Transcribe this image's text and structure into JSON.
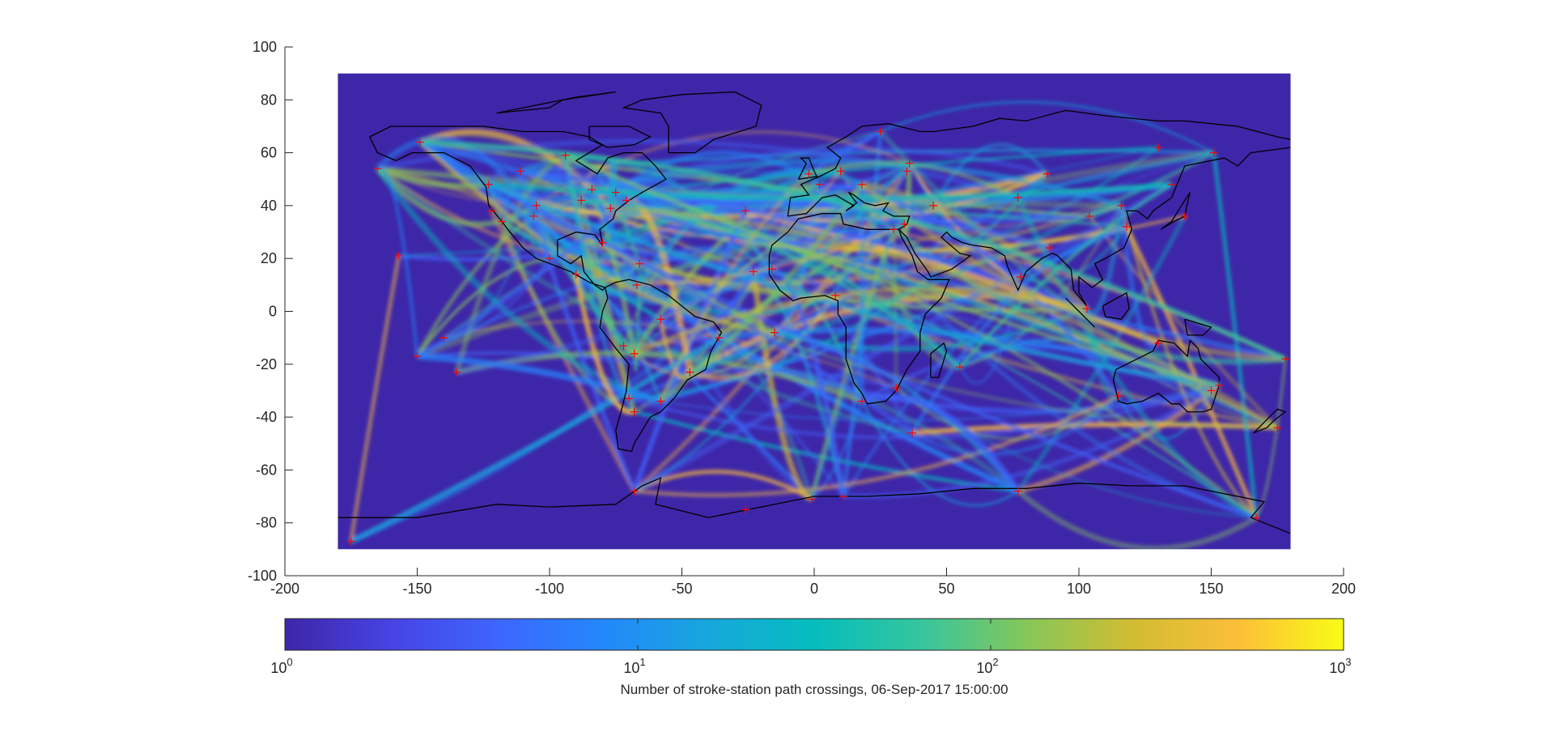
{
  "chart_data": {
    "type": "heatmap",
    "title": "",
    "xlabel": "",
    "ylabel": "",
    "xlim": [
      -200,
      200
    ],
    "ylim": [
      -100,
      100
    ],
    "x_ticks": [
      -200,
      -150,
      -100,
      -50,
      0,
      50,
      100,
      150,
      200
    ],
    "y_ticks": [
      -100,
      -80,
      -60,
      -40,
      -20,
      0,
      20,
      40,
      60,
      80,
      100
    ],
    "data_extent": {
      "lon": [
        -180,
        180
      ],
      "lat": [
        -90,
        90
      ]
    },
    "colormap": "parula",
    "colorbar": {
      "scale": "log",
      "range": [
        1,
        1000
      ],
      "ticks": [
        {
          "base": "10",
          "exp": "0",
          "value": 1
        },
        {
          "base": "10",
          "exp": "1",
          "value": 10
        },
        {
          "base": "10",
          "exp": "2",
          "value": 100
        },
        {
          "base": "10",
          "exp": "3",
          "value": 1000
        }
      ],
      "label": "Number of stroke-station path crossings, 06-Sep-2017 15:00:00",
      "location": "bottom"
    },
    "colors": {
      "low": "#3e26a8",
      "mid": "#2fbeb3",
      "high": "#f9fb15",
      "station_marker": "#ff0000",
      "coastline": "#000000"
    },
    "stations": [
      [
        -149,
        64
      ],
      [
        -165,
        54
      ],
      [
        -123,
        48
      ],
      [
        -122,
        38
      ],
      [
        -118,
        34
      ],
      [
        -111,
        53
      ],
      [
        -106,
        36
      ],
      [
        -105,
        40
      ],
      [
        -94,
        59
      ],
      [
        -88,
        42
      ],
      [
        -84,
        46
      ],
      [
        -80,
        26
      ],
      [
        -77,
        39
      ],
      [
        -75,
        45
      ],
      [
        -71,
        42
      ],
      [
        -66,
        18
      ],
      [
        -100,
        20
      ],
      [
        -90,
        14
      ],
      [
        -67,
        10
      ],
      [
        -58,
        -3
      ],
      [
        -47,
        -23
      ],
      [
        -72,
        -13
      ],
      [
        -68,
        -16
      ],
      [
        -70,
        -33
      ],
      [
        -68,
        -38
      ],
      [
        -58,
        -34
      ],
      [
        -36,
        -10
      ],
      [
        -68,
        -68
      ],
      [
        -157,
        21
      ],
      [
        -150,
        -17
      ],
      [
        -140,
        -10
      ],
      [
        -135,
        -23
      ],
      [
        -175,
        -87
      ],
      [
        -16,
        16
      ],
      [
        -23,
        15
      ],
      [
        -26,
        38
      ],
      [
        -15,
        -8
      ],
      [
        8,
        6
      ],
      [
        18,
        -34
      ],
      [
        31,
        -29
      ],
      [
        37,
        -46
      ],
      [
        -2,
        52
      ],
      [
        2,
        48
      ],
      [
        10,
        53
      ],
      [
        18,
        48
      ],
      [
        25,
        68
      ],
      [
        35,
        53
      ],
      [
        36,
        56
      ],
      [
        30,
        31
      ],
      [
        34,
        33
      ],
      [
        45,
        40
      ],
      [
        55,
        -21
      ],
      [
        77,
        43
      ],
      [
        78,
        13
      ],
      [
        88,
        52
      ],
      [
        89,
        24
      ],
      [
        104,
        36
      ],
      [
        103,
        1
      ],
      [
        116,
        40
      ],
      [
        118,
        32
      ],
      [
        115,
        -32
      ],
      [
        130,
        -12
      ],
      [
        135,
        48
      ],
      [
        140,
        36
      ],
      [
        130,
        62
      ],
      [
        151,
        60
      ],
      [
        153,
        -28
      ],
      [
        150,
        -30
      ],
      [
        167,
        -78
      ],
      [
        175,
        -44
      ],
      [
        178,
        -18
      ],
      [
        77,
        -68
      ],
      [
        11,
        -70
      ],
      [
        -1,
        -71
      ],
      [
        -26,
        -75
      ]
    ]
  }
}
